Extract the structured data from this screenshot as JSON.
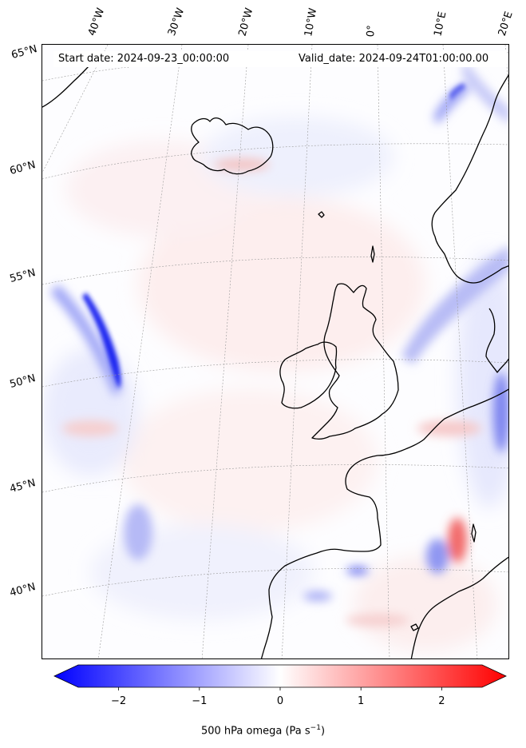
{
  "header": {
    "start_text": "Start date: 2024-09-23_00:00:00",
    "valid_text": "Valid_date: 2024-09-24T01:00:00.00"
  },
  "map": {
    "variable": "500 hPa omega",
    "projection": "conic (North Atlantic / Western Europe)",
    "extent": {
      "lon_min": -45,
      "lon_max": 25,
      "lat_min": 37,
      "lat_max": 66
    },
    "gridlines": "dotted gray",
    "lon_labels": [
      "40°W",
      "30°W",
      "20°W",
      "10°W",
      "0°",
      "10°E",
      "20°E"
    ],
    "lat_labels": [
      "65°N",
      "60°N",
      "55°N",
      "50°N",
      "45°N",
      "40°N"
    ],
    "features": [
      "Strong ascent band (blue) west of 20°W near 50-55°N",
      "Blue band over Norway / North Sea",
      "Red descent patch over Mediterranean near 43°N 8°E"
    ]
  },
  "colorbar": {
    "label": "500 hPa omega (Pa s",
    "label_exp": "−1",
    "label_close": ")",
    "range": [
      -2.5,
      2.5
    ],
    "ticks": [
      "−2",
      "−1",
      "0",
      "1",
      "2"
    ],
    "tick_values": [
      -2,
      -1,
      0,
      1,
      2
    ],
    "colors": {
      "low": "#0000ff",
      "mid": "#ffffff",
      "high": "#ff0000"
    },
    "extend": "both"
  }
}
